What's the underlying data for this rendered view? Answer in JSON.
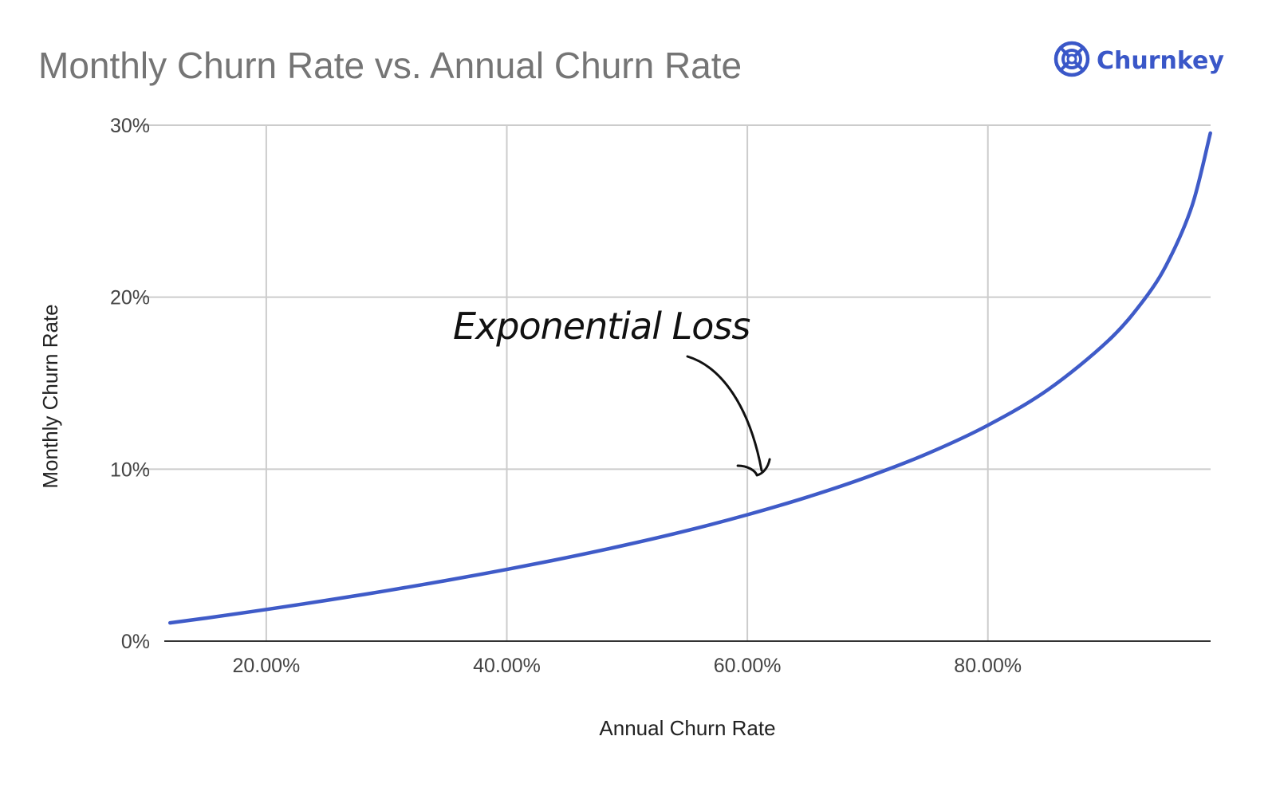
{
  "brand": {
    "name": "Churnkey",
    "icon": "churnkey-logo-icon",
    "color": "#3a57c8"
  },
  "chart_data": {
    "type": "line",
    "title": "Monthly Churn Rate vs. Annual Churn Rate",
    "xlabel": "Annual Churn Rate",
    "ylabel": "Monthly Churn Rate",
    "xlim": [
      0.1152,
      0.9852
    ],
    "ylim": [
      0,
      0.3
    ],
    "xticks": [
      {
        "value": 0.2,
        "label": "20.00%"
      },
      {
        "value": 0.4,
        "label": "40.00%"
      },
      {
        "value": 0.6,
        "label": "60.00%"
      },
      {
        "value": 0.8,
        "label": "80.00%"
      }
    ],
    "yticks": [
      {
        "value": 0,
        "label": "0%"
      },
      {
        "value": 0.1,
        "label": "10%"
      },
      {
        "value": 0.2,
        "label": "20%"
      },
      {
        "value": 0.3,
        "label": "30%"
      }
    ],
    "grid": true,
    "legend": "none",
    "series": [
      {
        "color": "#3f5bc8",
        "x": [
          0.12,
          0.15,
          0.2,
          0.25,
          0.3,
          0.35,
          0.4,
          0.45,
          0.5,
          0.55,
          0.6,
          0.65,
          0.7,
          0.75,
          0.8,
          0.85,
          0.9,
          0.93,
          0.95,
          0.97,
          0.985
        ],
        "y": [
          0.0106,
          0.0134,
          0.0184,
          0.0237,
          0.0293,
          0.0353,
          0.0417,
          0.0486,
          0.0561,
          0.0643,
          0.0735,
          0.0838,
          0.0955,
          0.1091,
          0.1255,
          0.1462,
          0.1746,
          0.1987,
          0.2209,
          0.2537,
          0.2954
        ]
      }
    ],
    "annotations": [
      {
        "text": "Exponential Loss",
        "points_to_x": 0.6
      }
    ]
  }
}
